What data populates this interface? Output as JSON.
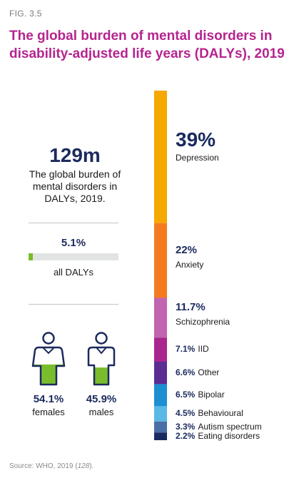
{
  "figure_label": "FIG. 3.5",
  "title": "The global burden of mental disorders in disability-adjusted life years (DALYs), 2019",
  "summary": {
    "total_value": "129m",
    "total_description": "The global burden of mental disorders in DALYs, 2019.",
    "share_value": "5.1%",
    "share_fraction": 0.051,
    "share_label": "all DALYs"
  },
  "gender": {
    "females": {
      "pct": "54.1%",
      "label": "females",
      "fill_fraction": 0.541
    },
    "males": {
      "pct": "45.9%",
      "label": "males",
      "fill_fraction": 0.459
    }
  },
  "colors": {
    "title": "#b5248f",
    "number": "#1b2a5e",
    "progress_fill": "#7abd2c",
    "progress_track": "#e2e3e3",
    "person_fill": "#7abd2c",
    "person_outline": "#1b2a5e"
  },
  "chart_data": {
    "type": "bar",
    "stacked": true,
    "orientation": "vertical",
    "categories": [
      "Depression",
      "Anxiety",
      "Schizophrenia",
      "IID",
      "Other",
      "Bipolar",
      "Behavioural",
      "Autism spectrum",
      "Eating disorders"
    ],
    "values": [
      39,
      22,
      11.7,
      7.1,
      6.6,
      6.5,
      4.5,
      3.3,
      2.2
    ],
    "labels": [
      "39%",
      "22%",
      "11.7%",
      "7.1%",
      "6.6%",
      "6.5%",
      "4.5%",
      "3.3%",
      "2.2%"
    ],
    "colors": [
      "#f5a800",
      "#f47b20",
      "#c264b0",
      "#a8268e",
      "#5b2c91",
      "#1b8fd2",
      "#5ab8e6",
      "#4a6fa5",
      "#1b2a5e"
    ]
  },
  "source": {
    "prefix": "Source:  WHO, 2019 (",
    "ref": "128",
    "suffix": ")."
  }
}
